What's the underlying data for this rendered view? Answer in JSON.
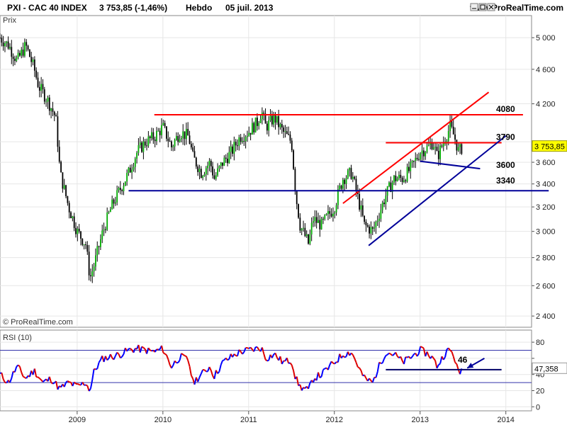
{
  "header": {
    "title": "PXI - CAC 40 INDEX",
    "quote": "3 753,85 (-1,46%)",
    "period": "Hebdo",
    "date": "05 juil. 2013",
    "site": "www.ProRealTime.com"
  },
  "colors": {
    "candle_up": "#00aa00",
    "candle_down": "#000000",
    "resistance_red": "#ff0000",
    "support_blue": "#000099",
    "rsi_up": "#0000ff",
    "rsi_down": "#dd0000",
    "grid": "#e6e6e6",
    "last_price_box": "#ffff00"
  },
  "icons": [
    "minimize-icon",
    "maximize-icon",
    "close-icon"
  ],
  "chart_data": [
    {
      "type": "candlestick",
      "title": "PXI - CAC 40 INDEX",
      "ylabel": "Prix",
      "ylog": true,
      "ylim": [
        2330,
        5300
      ],
      "xlim": [
        2008.1,
        2014.3
      ],
      "yticks": [
        2400,
        2600,
        2800,
        3000,
        3200,
        3400,
        3600,
        3800,
        4200,
        4600,
        5000
      ],
      "ytick_labels": [
        "2 400",
        "2 600",
        "2 800",
        "3 000",
        "3 200",
        "3 400",
        "3 600",
        "",
        "4 200",
        "4 600",
        "5 000"
      ],
      "xticks": [
        2009,
        2010,
        2011,
        2012,
        2013,
        2014
      ],
      "xtick_labels": [
        "2009",
        "2010",
        "2011",
        "2012",
        "2013",
        "2014"
      ],
      "grid": true,
      "watermark": "© ProRealTime.com",
      "last_price": 3753.85,
      "last_price_label": "3 753,85",
      "price_path": [
        [
          2008.1,
          5000
        ],
        [
          2008.2,
          4900
        ],
        [
          2008.3,
          4700
        ],
        [
          2008.4,
          4900
        ],
        [
          2008.5,
          4600
        ],
        [
          2008.55,
          4400
        ],
        [
          2008.65,
          4250
        ],
        [
          2008.75,
          4050
        ],
        [
          2008.8,
          3500
        ],
        [
          2008.9,
          3200
        ],
        [
          2009.0,
          3000
        ],
        [
          2009.1,
          2900
        ],
        [
          2009.15,
          2650
        ],
        [
          2009.2,
          2750
        ],
        [
          2009.3,
          3000
        ],
        [
          2009.4,
          3200
        ],
        [
          2009.5,
          3350
        ],
        [
          2009.6,
          3500
        ],
        [
          2009.7,
          3700
        ],
        [
          2009.8,
          3800
        ],
        [
          2009.9,
          3850
        ],
        [
          2010.0,
          3950
        ],
        [
          2010.1,
          3750
        ],
        [
          2010.2,
          3900
        ],
        [
          2010.3,
          3850
        ],
        [
          2010.35,
          3650
        ],
        [
          2010.45,
          3500
        ],
        [
          2010.55,
          3600
        ],
        [
          2010.6,
          3450
        ],
        [
          2010.7,
          3600
        ],
        [
          2010.8,
          3700
        ],
        [
          2010.9,
          3850
        ],
        [
          2011.0,
          3900
        ],
        [
          2011.1,
          4000
        ],
        [
          2011.15,
          4120
        ],
        [
          2011.2,
          3950
        ],
        [
          2011.3,
          4050
        ],
        [
          2011.4,
          3900
        ],
        [
          2011.5,
          3800
        ],
        [
          2011.55,
          3300
        ],
        [
          2011.6,
          3050
        ],
        [
          2011.7,
          2900
        ],
        [
          2011.75,
          3100
        ],
        [
          2011.85,
          3050
        ],
        [
          2011.95,
          3150
        ],
        [
          2012.0,
          3200
        ],
        [
          2012.1,
          3450
        ],
        [
          2012.2,
          3500
        ],
        [
          2012.3,
          3200
        ],
        [
          2012.35,
          3050
        ],
        [
          2012.45,
          3000
        ],
        [
          2012.5,
          3100
        ],
        [
          2012.6,
          3300
        ],
        [
          2012.7,
          3450
        ],
        [
          2012.8,
          3450
        ],
        [
          2012.9,
          3550
        ],
        [
          2013.0,
          3700
        ],
        [
          2013.1,
          3750
        ],
        [
          2013.15,
          3800
        ],
        [
          2013.2,
          3650
        ],
        [
          2013.3,
          3850
        ],
        [
          2013.35,
          3950
        ],
        [
          2013.4,
          3850
        ],
        [
          2013.45,
          3700
        ],
        [
          2013.5,
          3754
        ]
      ],
      "annotations": [
        {
          "label": "4080",
          "y": 4080
        },
        {
          "label": "3790",
          "y": 3790
        },
        {
          "label": "3600",
          "y": 3600
        },
        {
          "label": "3340",
          "y": 3340
        }
      ],
      "lines": [
        {
          "name": "resistance-4080",
          "color": "red",
          "p1": [
            2009.9,
            4080
          ],
          "p2": [
            2014.2,
            4080
          ]
        },
        {
          "name": "resistance-3790",
          "color": "red",
          "p1": [
            2012.6,
            3790
          ],
          "p2": [
            2013.95,
            3790
          ]
        },
        {
          "name": "channel-upper",
          "color": "red",
          "p1": [
            2012.1,
            3230
          ],
          "p2": [
            2013.8,
            4330
          ]
        },
        {
          "name": "support-3340",
          "color": "blue",
          "p1": [
            2009.6,
            3340
          ],
          "p2": [
            2014.5,
            3340
          ]
        },
        {
          "name": "channel-lower",
          "color": "blue",
          "p1": [
            2012.4,
            2890
          ],
          "p2": [
            2014.0,
            3860
          ]
        },
        {
          "name": "short-trend",
          "color": "blue",
          "p1": [
            2013.0,
            3610
          ],
          "p2": [
            2013.7,
            3540
          ]
        }
      ]
    },
    {
      "type": "line",
      "title": "RSI (10)",
      "ylim": [
        -5,
        95
      ],
      "yticks": [
        0,
        20,
        40,
        60,
        80
      ],
      "ytick_labels": [
        "0",
        "20",
        "40",
        "",
        "80"
      ],
      "levels": [
        70,
        30
      ],
      "last_value": 47.358,
      "last_value_label": "47,358",
      "annotation": {
        "label": "46",
        "y": 46
      },
      "rsi_path": [
        [
          2008.1,
          40
        ],
        [
          2008.2,
          30
        ],
        [
          2008.3,
          50
        ],
        [
          2008.4,
          35
        ],
        [
          2008.5,
          45
        ],
        [
          2008.6,
          30
        ],
        [
          2008.7,
          35
        ],
        [
          2008.8,
          22
        ],
        [
          2008.9,
          30
        ],
        [
          2009.0,
          25
        ],
        [
          2009.1,
          30
        ],
        [
          2009.15,
          20
        ],
        [
          2009.2,
          45
        ],
        [
          2009.3,
          60
        ],
        [
          2009.4,
          62
        ],
        [
          2009.5,
          65
        ],
        [
          2009.6,
          70
        ],
        [
          2009.7,
          72
        ],
        [
          2009.8,
          70
        ],
        [
          2009.9,
          68
        ],
        [
          2010.0,
          72
        ],
        [
          2010.1,
          50
        ],
        [
          2010.2,
          62
        ],
        [
          2010.3,
          58
        ],
        [
          2010.35,
          30
        ],
        [
          2010.45,
          40
        ],
        [
          2010.55,
          50
        ],
        [
          2010.6,
          38
        ],
        [
          2010.7,
          55
        ],
        [
          2010.8,
          62
        ],
        [
          2010.9,
          68
        ],
        [
          2011.0,
          70
        ],
        [
          2011.1,
          72
        ],
        [
          2011.15,
          73
        ],
        [
          2011.2,
          60
        ],
        [
          2011.3,
          65
        ],
        [
          2011.4,
          55
        ],
        [
          2011.5,
          58
        ],
        [
          2011.55,
          35
        ],
        [
          2011.6,
          25
        ],
        [
          2011.7,
          20
        ],
        [
          2011.75,
          35
        ],
        [
          2011.85,
          40
        ],
        [
          2011.95,
          50
        ],
        [
          2012.0,
          55
        ],
        [
          2012.1,
          65
        ],
        [
          2012.2,
          68
        ],
        [
          2012.3,
          45
        ],
        [
          2012.35,
          35
        ],
        [
          2012.45,
          30
        ],
        [
          2012.5,
          45
        ],
        [
          2012.6,
          68
        ],
        [
          2012.7,
          65
        ],
        [
          2012.8,
          55
        ],
        [
          2012.9,
          62
        ],
        [
          2013.0,
          70
        ],
        [
          2013.1,
          65
        ],
        [
          2013.15,
          60
        ],
        [
          2013.2,
          50
        ],
        [
          2013.3,
          68
        ],
        [
          2013.35,
          70
        ],
        [
          2013.4,
          62
        ],
        [
          2013.45,
          40
        ],
        [
          2013.5,
          47.358
        ]
      ],
      "lines": [
        {
          "name": "rsi-support-46",
          "color": "blue",
          "p1": [
            2012.6,
            46
          ],
          "p2": [
            2013.95,
            46
          ]
        }
      ],
      "arrow": {
        "from": [
          2013.75,
          60
        ],
        "to": [
          2013.55,
          48
        ]
      }
    }
  ]
}
